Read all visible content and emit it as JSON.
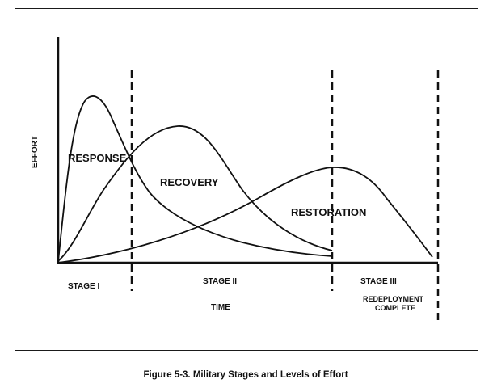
{
  "diagram": {
    "y_axis_label": "EFFORT",
    "x_axis_label": "TIME",
    "curves": {
      "response": "RESPONSE",
      "recovery": "RECOVERY",
      "restoration": "RESTORATION"
    },
    "stages": [
      "STAGE I",
      "STAGE II",
      "STAGE III"
    ],
    "end_note": [
      "REDEPLOYMENT",
      "COMPLETE"
    ],
    "caption": "Figure 5-3.  Military Stages and Levels of Effort"
  }
}
